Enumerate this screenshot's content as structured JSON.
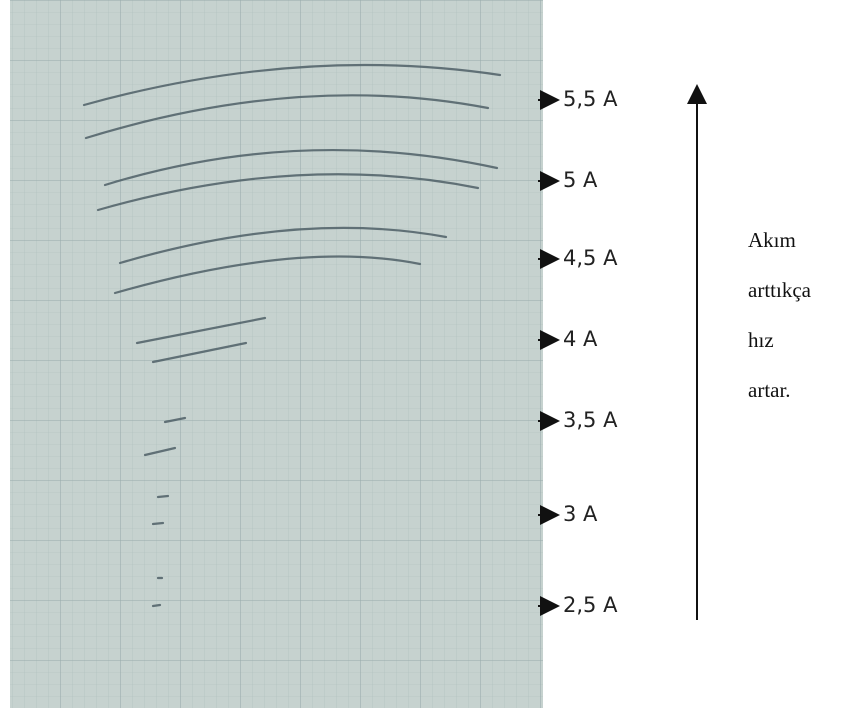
{
  "labels": [
    "5,5 A",
    "5 A",
    "4,5 A",
    "4 A",
    "3,5 A",
    "3 A",
    "2,5 A"
  ],
  "side_text": [
    "Akım",
    "arttıkça",
    "hız",
    "artar."
  ]
}
